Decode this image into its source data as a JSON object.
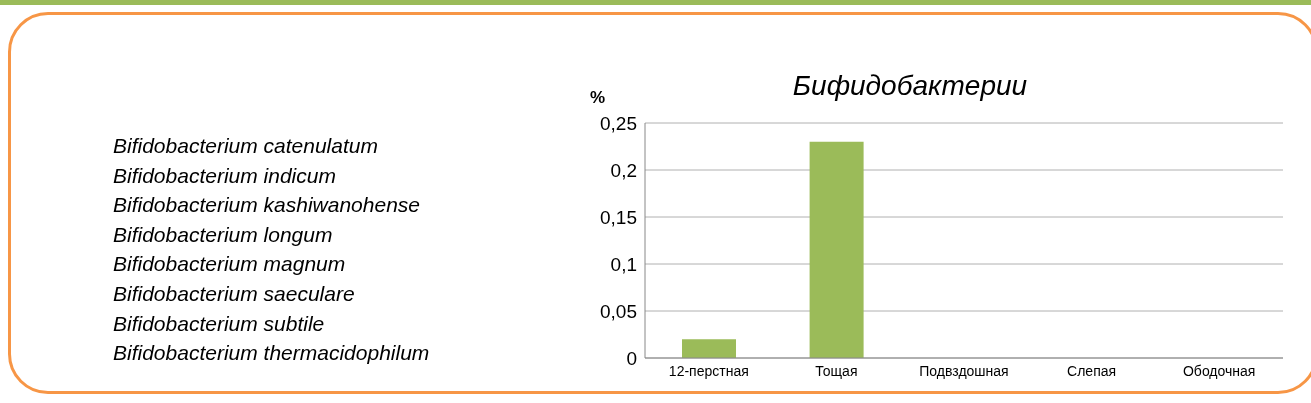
{
  "chart_data": {
    "type": "bar",
    "title": "Бифидобактерии",
    "ylabel": "%",
    "categories": [
      "12-перстная",
      "Тощая",
      "Подвздошная",
      "Слепая",
      "Ободочная"
    ],
    "values": [
      0.02,
      0.23,
      0,
      0,
      0
    ],
    "color": "#9bbb59",
    "ylim": [
      0,
      0.25
    ],
    "yticks": [
      {
        "value": 0,
        "label": "0"
      },
      {
        "value": 0.05,
        "label": "0,05"
      },
      {
        "value": 0.1,
        "label": "0,1"
      },
      {
        "value": 0.15,
        "label": "0,15"
      },
      {
        "value": 0.2,
        "label": "0,2"
      },
      {
        "value": 0.25,
        "label": "0,25"
      }
    ],
    "grid": "y",
    "legend": false,
    "annotations": [
      "Bifidobacterium catenulatum",
      "Bifidobacterium indicum",
      "Bifidobacterium kashiwanohense",
      "Bifidobacterium longum",
      "Bifidobacterium magnum",
      "Bifidobacterium saeculare",
      "Bifidobacterium subtile",
      "Bifidobacterium thermacidophilum"
    ]
  }
}
